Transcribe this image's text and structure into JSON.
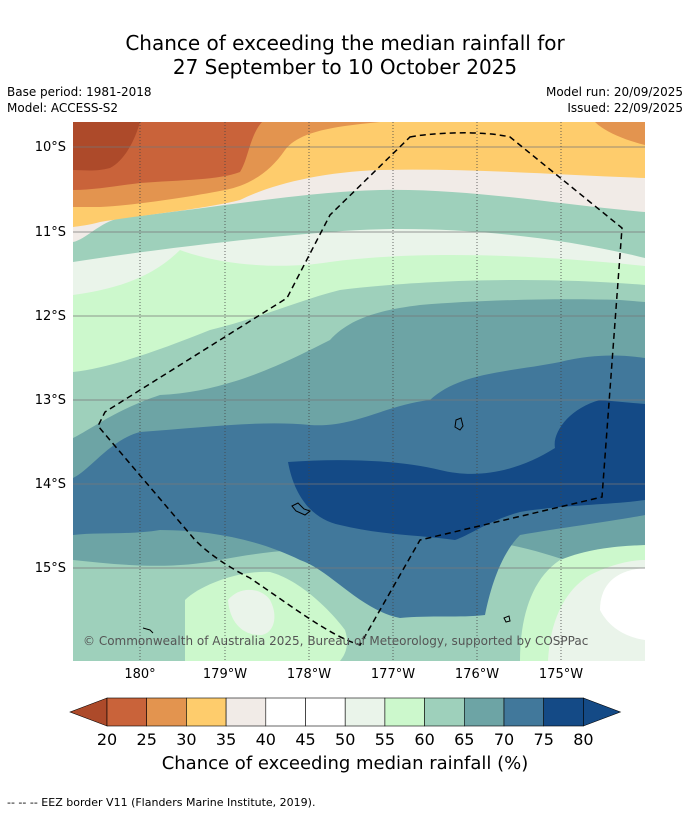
{
  "title": {
    "line1": "Chance of exceeding the median rainfall for",
    "line2": "27 September to 10 October 2025"
  },
  "meta": {
    "base_period": "Base period: 1981-2018",
    "model": "Model: ACCESS-S2",
    "model_run": "Model run: 20/09/2025",
    "issued": "Issued: 22/09/2025"
  },
  "map": {
    "lat_labels": [
      "10°S",
      "11°S",
      "12°S",
      "13°S",
      "14°S",
      "15°S"
    ],
    "lon_labels": [
      "180°",
      "179°W",
      "178°W",
      "177°W",
      "176°W",
      "175°W"
    ],
    "copyright": "© Commonwealth of Australia 2025, Bureau of Meteorology, supported by COSPPac",
    "features": [
      "eez-border-dashed",
      "island-outlines"
    ]
  },
  "colorbar": {
    "title": "Chance of exceeding median rainfall (%)",
    "ticks": [
      "20",
      "25",
      "30",
      "35",
      "40",
      "45",
      "50",
      "55",
      "60",
      "65",
      "70",
      "75",
      "80"
    ],
    "colors": [
      "#ad4a2a",
      "#c9633a",
      "#e3944f",
      "#fecc6c",
      "#f1ebe7",
      "#ffffff",
      "#ffffff",
      "#eaf4ea",
      "#ccf8cc",
      "#9ed0bb",
      "#6da4a5",
      "#41789b",
      "#144a86",
      "#144a86"
    ]
  },
  "footer": "-- -- -- EEZ border V11 (Flanders Marine Institute, 2019)."
}
